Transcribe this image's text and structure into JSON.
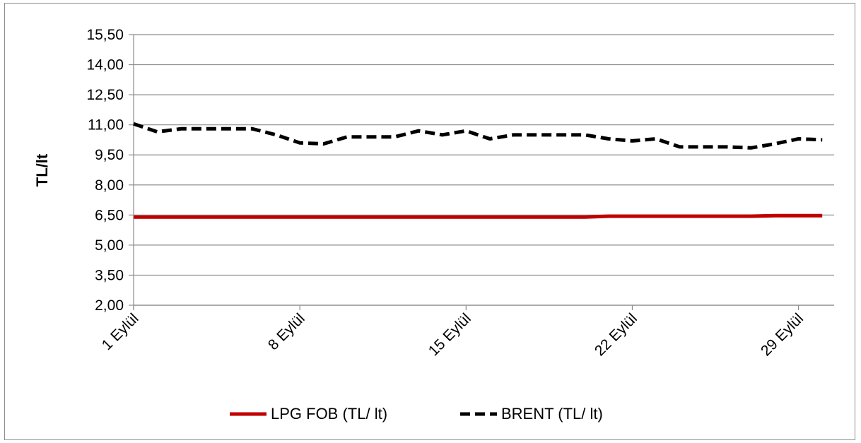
{
  "chart_data": {
    "type": "line",
    "title": "",
    "xlabel": "",
    "ylabel": "TL/lt",
    "ylim": [
      2.0,
      15.5
    ],
    "yticks": [
      "2,00",
      "3,50",
      "5,00",
      "6,50",
      "8,00",
      "9,50",
      "11,00",
      "12,50",
      "14,00",
      "15,50"
    ],
    "ytick_values": [
      2.0,
      3.5,
      5.0,
      6.5,
      8.0,
      9.5,
      11.0,
      12.5,
      14.0,
      15.5
    ],
    "x": [
      1,
      2,
      3,
      4,
      5,
      6,
      7,
      8,
      9,
      10,
      11,
      12,
      13,
      14,
      15,
      16,
      17,
      18,
      19,
      20,
      21,
      22,
      23,
      24,
      25,
      26,
      27,
      28,
      29,
      30
    ],
    "xlim": [
      1,
      30.5
    ],
    "xtick_values": [
      1,
      8,
      15,
      22,
      29
    ],
    "xticks": [
      "1 Eylül",
      "8 Eylül",
      "15 Eylül",
      "22 Eylül",
      "29 Eylül"
    ],
    "grid": true,
    "legend_position": "bottom",
    "series": [
      {
        "name": "LPG FOB (TL/ lt)",
        "color": "#c00000",
        "style": "solid",
        "values": [
          6.4,
          6.4,
          6.4,
          6.4,
          6.4,
          6.4,
          6.4,
          6.4,
          6.4,
          6.4,
          6.4,
          6.4,
          6.4,
          6.4,
          6.4,
          6.4,
          6.4,
          6.4,
          6.4,
          6.4,
          6.44,
          6.44,
          6.44,
          6.44,
          6.44,
          6.44,
          6.44,
          6.47,
          6.47,
          6.47
        ]
      },
      {
        "name": "BRENT (TL/ lt)",
        "color": "#000000",
        "style": "dashed",
        "values": [
          11.05,
          10.65,
          10.8,
          10.8,
          10.8,
          10.8,
          10.5,
          10.1,
          10.05,
          10.4,
          10.4,
          10.4,
          10.7,
          10.5,
          10.7,
          10.3,
          10.5,
          10.5,
          10.5,
          10.5,
          10.3,
          10.2,
          10.3,
          9.9,
          9.9,
          9.9,
          9.85,
          10.05,
          10.3,
          10.25
        ]
      }
    ]
  }
}
